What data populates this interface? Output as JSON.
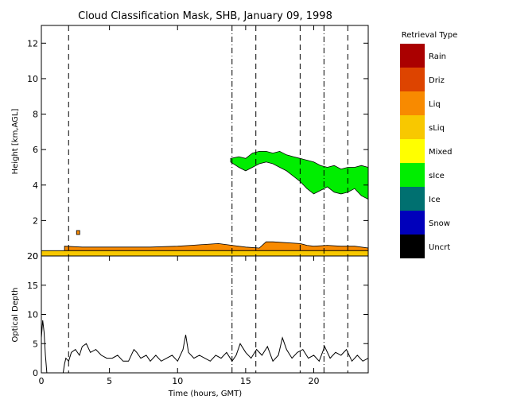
{
  "chart_data": [
    {
      "type": "area",
      "title": "Cloud Classification Mask, SHB, January 09, 1998",
      "ylabel": "Height [km,AGL]",
      "xlim": [
        0,
        24
      ],
      "ylim": [
        0,
        13
      ],
      "yticks": [
        0,
        2,
        4,
        6,
        8,
        10,
        12
      ],
      "grid": false,
      "layers": [
        {
          "class": "sIce",
          "color": "#00ee00",
          "x": [
            13.9,
            14.5,
            15.0,
            15.5,
            16.0,
            16.5,
            17.0,
            17.5,
            18.0,
            18.5,
            19.0,
            19.5,
            20.0,
            20.5,
            21.0,
            21.5,
            22.0,
            22.5,
            23.0,
            23.5,
            24.0
          ],
          "top": [
            5.5,
            5.6,
            5.5,
            5.8,
            5.9,
            5.9,
            5.8,
            5.9,
            5.7,
            5.6,
            5.5,
            5.4,
            5.3,
            5.1,
            5.0,
            5.1,
            4.9,
            5.0,
            5.0,
            5.1,
            5.0
          ],
          "bottom": [
            5.3,
            5.0,
            4.8,
            5.0,
            5.2,
            5.3,
            5.2,
            5.0,
            4.8,
            4.5,
            4.2,
            3.8,
            3.5,
            3.7,
            3.9,
            3.6,
            3.5,
            3.6,
            3.8,
            3.4,
            3.2
          ]
        },
        {
          "class": "Liq",
          "color": "#f88a00",
          "x": [
            1.7,
            3,
            6,
            8,
            10,
            11,
            12,
            13,
            14,
            15,
            16,
            16.5,
            17,
            18,
            19,
            19.5,
            20,
            21,
            22,
            23,
            24
          ],
          "top": [
            0.55,
            0.5,
            0.5,
            0.5,
            0.55,
            0.6,
            0.65,
            0.7,
            0.6,
            0.5,
            0.45,
            0.8,
            0.8,
            0.75,
            0.7,
            0.6,
            0.55,
            0.6,
            0.55,
            0.55,
            0.45
          ],
          "bottom": [
            0.3,
            0.3,
            0.3,
            0.3,
            0.3,
            0.3,
            0.3,
            0.3,
            0.3,
            0.3,
            0.3,
            0.3,
            0.3,
            0.3,
            0.3,
            0.3,
            0.3,
            0.3,
            0.3,
            0.3,
            0.3
          ]
        },
        {
          "class": "sLiq",
          "color": "#f8c800",
          "x": [
            0,
            0.3,
            1.7,
            24
          ],
          "top": [
            0.3,
            0.3,
            0.3,
            0.3
          ],
          "bottom": [
            0,
            0,
            0,
            0
          ]
        }
      ],
      "markers": [
        {
          "x": 2.7,
          "y": 1.3
        }
      ],
      "vertical_lines": [
        {
          "x": 2.0,
          "style": "dashed"
        },
        {
          "x": 14.0,
          "style": "dashdot"
        },
        {
          "x": 15.75,
          "style": "dashed"
        },
        {
          "x": 19.0,
          "style": "dashed"
        },
        {
          "x": 20.75,
          "style": "dashdot"
        },
        {
          "x": 22.5,
          "style": "dashed"
        }
      ]
    },
    {
      "type": "line",
      "xlabel": "Time (hours, GMT)",
      "ylabel": "Optical Depth",
      "xlim": [
        0,
        24
      ],
      "ylim": [
        0,
        20
      ],
      "xticks": [
        0,
        5,
        10,
        15,
        20
      ],
      "yticks": [
        0,
        5,
        10,
        15,
        20
      ],
      "grid": false,
      "x": [
        0,
        0.1,
        0.2,
        0.3,
        0.4,
        1.5,
        1.6,
        1.7,
        1.8,
        2.0,
        2.2,
        2.5,
        2.8,
        3.0,
        3.3,
        3.6,
        4.0,
        4.4,
        4.8,
        5.2,
        5.6,
        6.0,
        6.4,
        6.8,
        7.0,
        7.3,
        7.7,
        8.0,
        8.4,
        8.8,
        9.2,
        9.6,
        10.0,
        10.4,
        10.6,
        10.8,
        11.2,
        11.6,
        12.0,
        12.4,
        12.8,
        13.2,
        13.6,
        14.0,
        14.3,
        14.6,
        15.0,
        15.4,
        15.8,
        16.2,
        16.6,
        17.0,
        17.4,
        17.7,
        18.0,
        18.4,
        18.8,
        19.2,
        19.6,
        20.0,
        20.4,
        20.8,
        21.2,
        21.6,
        22.0,
        22.4,
        22.8,
        23.2,
        23.6,
        24.0
      ],
      "y": [
        6,
        9,
        7,
        3,
        0,
        0,
        0,
        1.5,
        2.5,
        2,
        3.5,
        4,
        3,
        4.5,
        5,
        3.5,
        4,
        3,
        2.5,
        2.5,
        3,
        2,
        2,
        4,
        3.5,
        2.5,
        3,
        2,
        3,
        2,
        2.5,
        3,
        2,
        4,
        6.5,
        3.5,
        2.5,
        3,
        2.5,
        2,
        3,
        2.5,
        3.5,
        2,
        3,
        5,
        3.5,
        2.5,
        4,
        3,
        4.5,
        2,
        3,
        6,
        4,
        2.5,
        3.5,
        4,
        2.5,
        3,
        2,
        4.5,
        2.5,
        3.5,
        3,
        4,
        2,
        3,
        2,
        2.5
      ],
      "vertical_lines": [
        {
          "x": 2.0,
          "style": "dashed"
        },
        {
          "x": 14.0,
          "style": "dashdot"
        },
        {
          "x": 15.75,
          "style": "dashed"
        },
        {
          "x": 19.0,
          "style": "dashed"
        },
        {
          "x": 20.75,
          "style": "dashdot"
        },
        {
          "x": 22.5,
          "style": "dashed"
        }
      ]
    }
  ],
  "legend": {
    "title": "Retrieval Type",
    "items": [
      {
        "label": "Rain",
        "color": "#aa0000"
      },
      {
        "label": "Driz",
        "color": "#dd4400"
      },
      {
        "label": "Liq",
        "color": "#f88a00"
      },
      {
        "label": "sLiq",
        "color": "#f8c800"
      },
      {
        "label": "Mixed",
        "color": "#ffff00"
      },
      {
        "label": "sIce",
        "color": "#00ee00"
      },
      {
        "label": "Ice",
        "color": "#007070"
      },
      {
        "label": "Snow",
        "color": "#0000bb"
      },
      {
        "label": "Uncrt",
        "color": "#000000"
      }
    ]
  }
}
